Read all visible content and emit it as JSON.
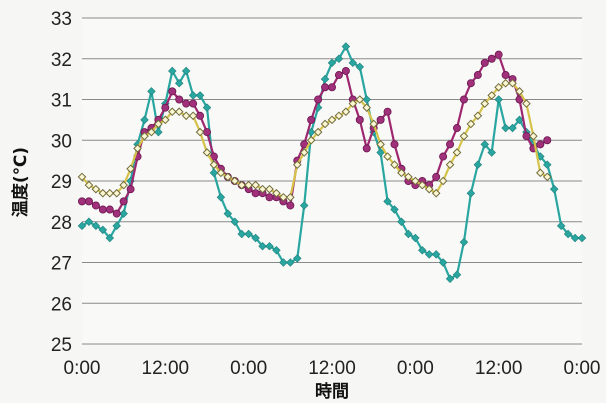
{
  "chart_data": {
    "type": "line",
    "xlabel": "時間",
    "ylabel": "温度(℃)",
    "ylim": [
      25,
      33
    ],
    "y_ticks": [
      "25",
      "26",
      "27",
      "28",
      "29",
      "30",
      "31",
      "32",
      "33"
    ],
    "x_ticks": [
      "0:00",
      "12:00",
      "0:00",
      "12:00",
      "0:00",
      "12:00",
      "0:00"
    ],
    "x_tick_hours": [
      0,
      12,
      24,
      36,
      48,
      60,
      72
    ],
    "xlim_hours": [
      0,
      72
    ],
    "grid": "horizontal",
    "legend": "none",
    "series": [
      {
        "color": "#2aa6a0",
        "marker": "diamond",
        "points": [
          [
            0,
            27.9
          ],
          [
            1,
            28
          ],
          [
            2,
            27.9
          ],
          [
            3,
            27.8
          ],
          [
            4,
            27.6
          ],
          [
            5,
            27.9
          ],
          [
            6,
            28.2
          ],
          [
            7,
            29
          ],
          [
            8,
            29.9
          ],
          [
            9,
            30.5
          ],
          [
            10,
            31.2
          ],
          [
            11,
            30.2
          ],
          [
            12,
            30.9
          ],
          [
            13,
            31.7
          ],
          [
            14,
            31.4
          ],
          [
            15,
            31.7
          ],
          [
            16,
            31.1
          ],
          [
            17,
            31.1
          ],
          [
            18,
            30.8
          ],
          [
            19,
            29.2
          ],
          [
            20,
            28.6
          ],
          [
            21,
            28.2
          ],
          [
            22,
            28
          ],
          [
            23,
            27.7
          ],
          [
            24,
            27.7
          ],
          [
            25,
            27.6
          ],
          [
            26,
            27.4
          ],
          [
            27,
            27.4
          ],
          [
            28,
            27.3
          ],
          [
            29,
            27
          ],
          [
            30,
            27
          ],
          [
            31,
            27.1
          ],
          [
            32,
            28.4
          ],
          [
            33,
            30.2
          ],
          [
            34,
            30.8
          ],
          [
            35,
            31.5
          ],
          [
            36,
            31.9
          ],
          [
            37,
            32
          ],
          [
            38,
            32.3
          ],
          [
            39,
            31.9
          ],
          [
            40,
            31.8
          ],
          [
            41,
            31
          ],
          [
            42,
            30.2
          ],
          [
            43,
            29.7
          ],
          [
            44,
            28.5
          ],
          [
            45,
            28.3
          ],
          [
            46,
            28
          ],
          [
            47,
            27.7
          ],
          [
            48,
            27.6
          ],
          [
            49,
            27.3
          ],
          [
            50,
            27.2
          ],
          [
            51,
            27.2
          ],
          [
            52,
            27
          ],
          [
            53,
            26.6
          ],
          [
            54,
            26.7
          ],
          [
            55,
            27.5
          ],
          [
            56,
            28.7
          ],
          [
            57,
            29.4
          ],
          [
            58,
            29.9
          ],
          [
            59,
            29.7
          ],
          [
            60,
            31
          ],
          [
            61,
            30.3
          ],
          [
            62,
            30.3
          ],
          [
            63,
            30.5
          ],
          [
            64,
            30.2
          ],
          [
            65,
            29.9
          ],
          [
            66,
            29.6
          ],
          [
            67,
            29.4
          ],
          [
            68,
            28.8
          ],
          [
            69,
            27.9
          ],
          [
            70,
            27.7
          ],
          [
            71,
            27.6
          ],
          [
            72,
            27.6
          ]
        ]
      },
      {
        "color": "#9e2870",
        "marker": "circle",
        "points": [
          [
            0,
            28.5
          ],
          [
            1,
            28.5
          ],
          [
            2,
            28.4
          ],
          [
            3,
            28.3
          ],
          [
            4,
            28.3
          ],
          [
            5,
            28.2
          ],
          [
            6,
            28.5
          ],
          [
            7,
            28.8
          ],
          [
            8,
            29.6
          ],
          [
            9,
            30.2
          ],
          [
            10,
            30.3
          ],
          [
            11,
            30.5
          ],
          [
            12,
            30.8
          ],
          [
            13,
            31.2
          ],
          [
            14,
            31
          ],
          [
            15,
            30.9
          ],
          [
            16,
            30.9
          ],
          [
            17,
            30.6
          ],
          [
            18,
            30.2
          ],
          [
            19,
            29.6
          ],
          [
            20,
            29.3
          ],
          [
            21,
            29.1
          ],
          [
            22,
            29
          ],
          [
            23,
            28.9
          ],
          [
            24,
            28.8
          ],
          [
            25,
            28.7
          ],
          [
            26,
            28.7
          ],
          [
            27,
            28.6
          ],
          [
            28,
            28.6
          ],
          [
            29,
            28.5
          ],
          [
            30,
            28.4
          ],
          [
            31,
            29.5
          ],
          [
            32,
            29.9
          ],
          [
            33,
            30.5
          ],
          [
            34,
            31
          ],
          [
            35,
            31.3
          ],
          [
            36,
            31.3
          ],
          [
            37,
            31.6
          ],
          [
            38,
            31.7
          ],
          [
            39,
            31
          ],
          [
            40,
            30.5
          ],
          [
            41,
            29.8
          ],
          [
            42,
            30.3
          ],
          [
            43,
            30.5
          ],
          [
            44,
            30.7
          ],
          [
            45,
            29.9
          ],
          [
            46,
            29.3
          ],
          [
            47,
            29
          ],
          [
            48,
            28.9
          ],
          [
            49,
            29
          ],
          [
            50,
            28.9
          ],
          [
            51,
            29.1
          ],
          [
            52,
            29.6
          ],
          [
            53,
            29.9
          ],
          [
            54,
            30.3
          ],
          [
            55,
            31
          ],
          [
            56,
            31.4
          ],
          [
            57,
            31.6
          ],
          [
            58,
            31.9
          ],
          [
            59,
            32
          ],
          [
            60,
            32.1
          ],
          [
            61,
            31.6
          ],
          [
            62,
            31.5
          ],
          [
            63,
            31
          ],
          [
            64,
            30.1
          ],
          [
            65,
            29.8
          ],
          [
            66,
            29.9
          ],
          [
            67,
            30
          ]
        ]
      },
      {
        "color": "#d6c34a",
        "marker": "open-diamond",
        "points": [
          [
            0,
            29.1
          ],
          [
            1,
            28.9
          ],
          [
            2,
            28.8
          ],
          [
            3,
            28.7
          ],
          [
            4,
            28.7
          ],
          [
            5,
            28.7
          ],
          [
            6,
            28.9
          ],
          [
            7,
            29.3
          ],
          [
            8,
            29.8
          ],
          [
            9,
            30.1
          ],
          [
            10,
            30.2
          ],
          [
            11,
            30.4
          ],
          [
            12,
            30.5
          ],
          [
            13,
            30.7
          ],
          [
            14,
            30.7
          ],
          [
            15,
            30.6
          ],
          [
            16,
            30.6
          ],
          [
            17,
            30.2
          ],
          [
            18,
            29.7
          ],
          [
            19,
            29.4
          ],
          [
            20,
            29.2
          ],
          [
            21,
            29.1
          ],
          [
            22,
            29
          ],
          [
            23,
            28.9
          ],
          [
            24,
            28.9
          ],
          [
            25,
            28.9
          ],
          [
            26,
            28.8
          ],
          [
            27,
            28.8
          ],
          [
            28,
            28.7
          ],
          [
            29,
            28.6
          ],
          [
            30,
            28.6
          ],
          [
            31,
            29.4
          ],
          [
            32,
            29.7
          ],
          [
            33,
            30
          ],
          [
            34,
            30.2
          ],
          [
            35,
            30.4
          ],
          [
            36,
            30.5
          ],
          [
            37,
            30.6
          ],
          [
            38,
            30.7
          ],
          [
            39,
            30.9
          ],
          [
            40,
            31
          ],
          [
            41,
            30.8
          ],
          [
            42,
            30.4
          ],
          [
            43,
            29.9
          ],
          [
            44,
            29.6
          ],
          [
            45,
            29.4
          ],
          [
            46,
            29.2
          ],
          [
            47,
            29.1
          ],
          [
            48,
            29
          ],
          [
            49,
            28.9
          ],
          [
            50,
            28.8
          ],
          [
            51,
            28.7
          ],
          [
            52,
            29
          ],
          [
            53,
            29.4
          ],
          [
            54,
            29.7
          ],
          [
            55,
            30.1
          ],
          [
            56,
            30.4
          ],
          [
            57,
            30.6
          ],
          [
            58,
            30.9
          ],
          [
            59,
            31.1
          ],
          [
            60,
            31.3
          ],
          [
            61,
            31.4
          ],
          [
            62,
            31.4
          ],
          [
            63,
            31.2
          ],
          [
            64,
            30.9
          ],
          [
            65,
            30.1
          ],
          [
            66,
            29.2
          ],
          [
            67,
            29.1
          ]
        ]
      }
    ]
  }
}
